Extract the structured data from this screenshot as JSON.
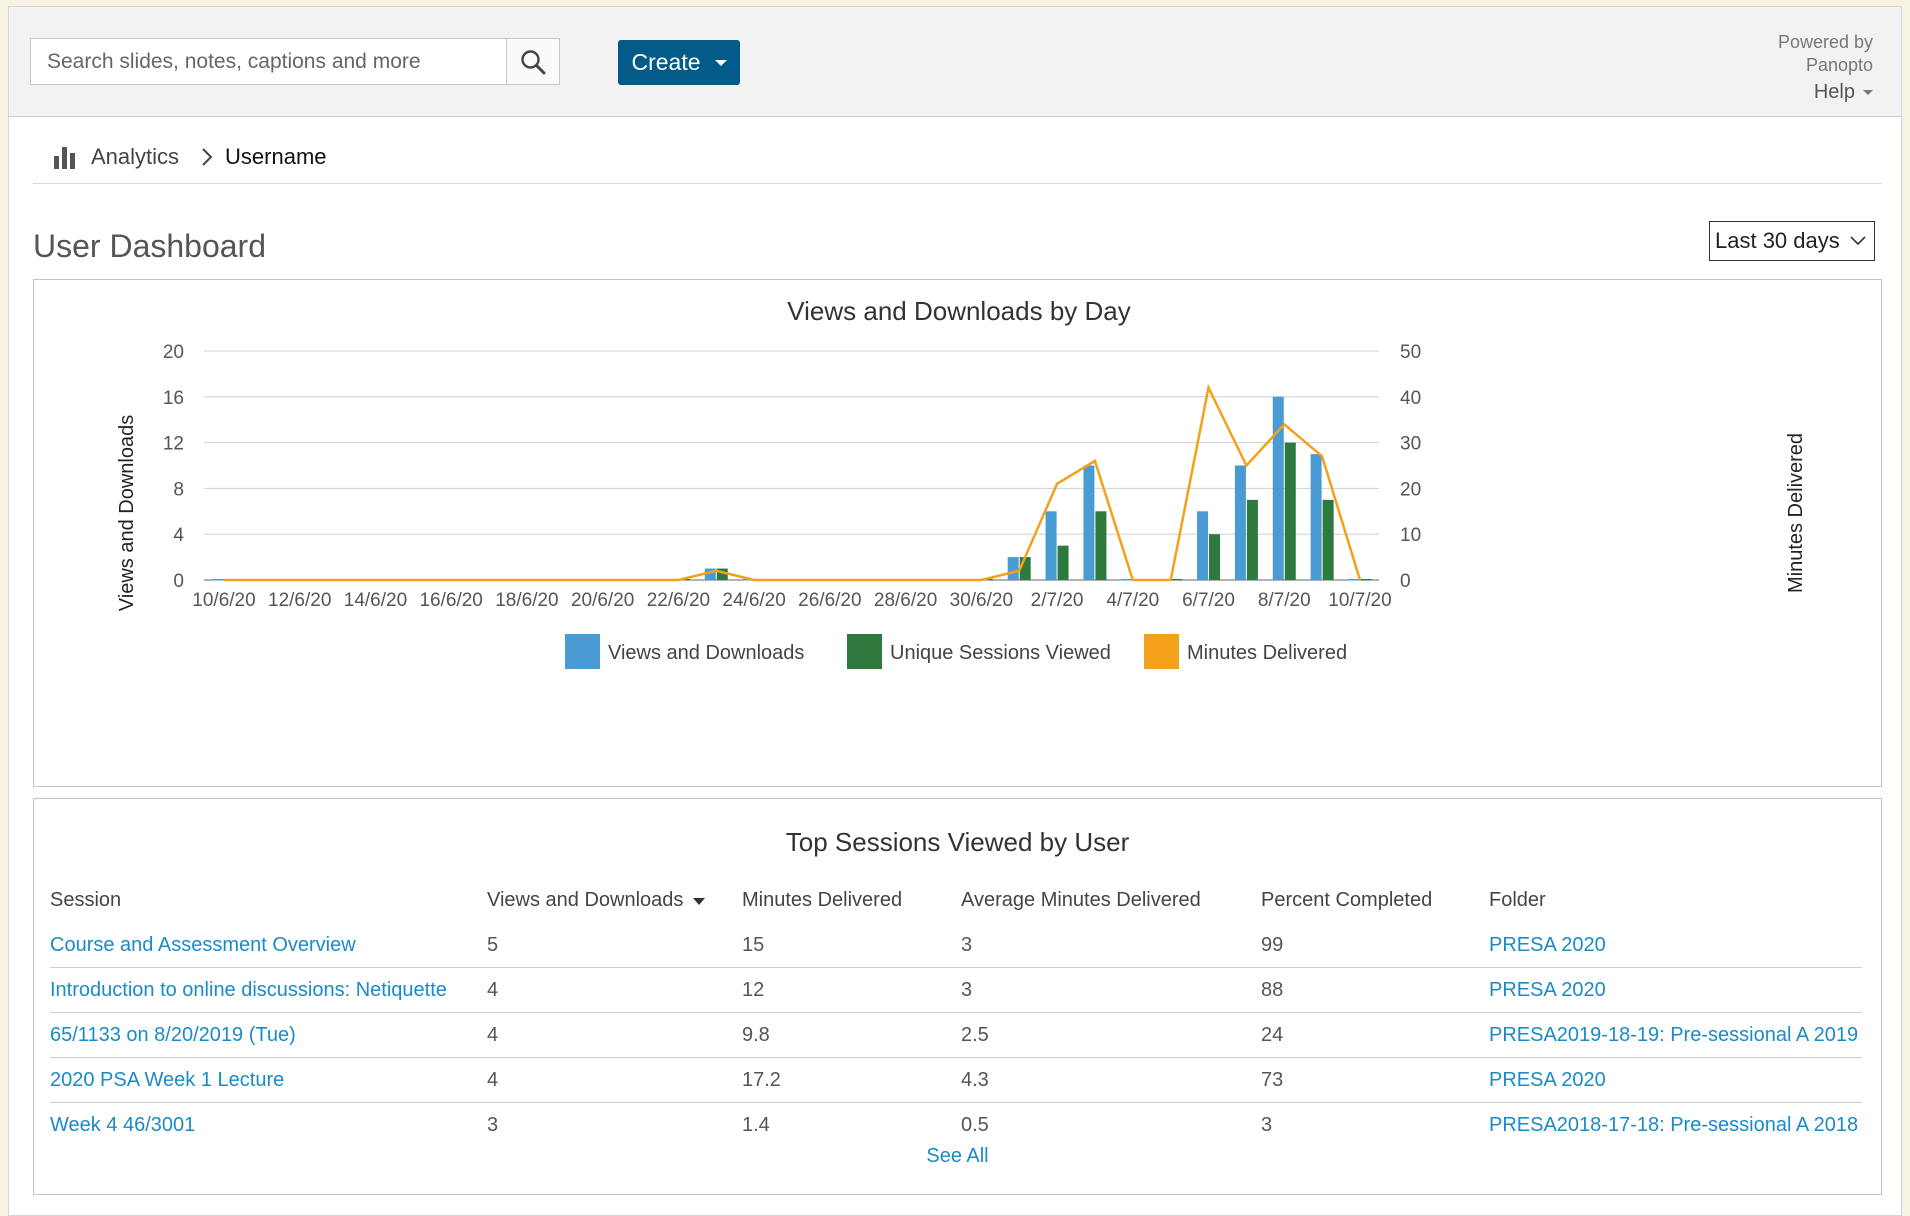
{
  "header": {
    "search_placeholder": "Search slides, notes, captions and more",
    "create_label": "Create",
    "powered_line1": "Powered by",
    "powered_line2": "Panopto",
    "help_label": "Help"
  },
  "breadcrumb": {
    "analytics": "Analytics",
    "user": "Username"
  },
  "page": {
    "title": "User Dashboard",
    "range": "Last 30 days"
  },
  "chart_data": {
    "type": "bar",
    "title": "Views and Downloads by Day",
    "ylabel": "Views and Downloads",
    "y2label": "Minutes Delivered",
    "ylim": [
      0,
      20
    ],
    "y2lim": [
      0,
      50
    ],
    "yticks": [
      0,
      4,
      8,
      12,
      16,
      20
    ],
    "y2ticks": [
      0,
      10,
      20,
      30,
      40,
      50
    ],
    "xtick_labels": [
      "10/6/20",
      "12/6/20",
      "14/6/20",
      "16/6/20",
      "18/6/20",
      "20/6/20",
      "22/6/20",
      "24/6/20",
      "26/6/20",
      "28/6/20",
      "30/6/20",
      "2/7/20",
      "4/7/20",
      "6/7/20",
      "8/7/20",
      "10/7/20"
    ],
    "categories": [
      "10/6/20",
      "11/6/20",
      "12/6/20",
      "13/6/20",
      "14/6/20",
      "15/6/20",
      "16/6/20",
      "17/6/20",
      "18/6/20",
      "19/6/20",
      "20/6/20",
      "21/6/20",
      "22/6/20",
      "23/6/20",
      "24/6/20",
      "25/6/20",
      "26/6/20",
      "27/6/20",
      "28/6/20",
      "29/6/20",
      "30/6/20",
      "1/7/20",
      "2/7/20",
      "3/7/20",
      "4/7/20",
      "5/7/20",
      "6/7/20",
      "7/7/20",
      "8/7/20",
      "9/7/20",
      "10/7/20"
    ],
    "series": [
      {
        "name": "Views and Downloads",
        "kind": "bar",
        "axis": "left",
        "color": "#4a9bd4",
        "values": [
          0,
          0,
          0,
          0,
          0,
          0,
          0,
          0,
          0,
          0,
          0,
          0,
          0,
          1,
          0,
          0,
          0,
          0,
          0,
          0,
          0,
          2,
          6,
          10,
          0,
          0,
          6,
          10,
          16,
          11,
          0
        ]
      },
      {
        "name": "Unique Sessions Viewed",
        "kind": "bar",
        "axis": "left",
        "color": "#2e7a3e",
        "values": [
          0,
          0,
          0,
          0,
          0,
          0,
          0,
          0,
          0,
          0,
          0,
          0,
          0,
          1,
          0,
          0,
          0,
          0,
          0,
          0,
          0,
          2,
          3,
          6,
          0,
          0,
          4,
          7,
          12,
          7,
          0
        ]
      },
      {
        "name": "Minutes Delivered",
        "kind": "line",
        "axis": "right",
        "color": "#f5a01a",
        "values": [
          0,
          0,
          0,
          0,
          0,
          0,
          0,
          0,
          0,
          0,
          0,
          0,
          0,
          2,
          0,
          0,
          0,
          0,
          0,
          0,
          0,
          2,
          21,
          26,
          0,
          0,
          42,
          25,
          34,
          27,
          0
        ]
      }
    ],
    "legend_position": "bottom",
    "grid": true
  },
  "table": {
    "title": "Top Sessions Viewed by User",
    "columns": [
      "Session",
      "Views and Downloads",
      "Minutes Delivered",
      "Average Minutes Delivered",
      "Percent Completed",
      "Folder"
    ],
    "rows": [
      {
        "session": "Course and Assessment Overview",
        "views": "5",
        "minutes": "15",
        "avg": "3",
        "percent": "99",
        "folder": "PRESA 2020"
      },
      {
        "session": "Introduction to online discussions: Netiquette",
        "views": "4",
        "minutes": "12",
        "avg": "3",
        "percent": "88",
        "folder": "PRESA 2020"
      },
      {
        "session": "65/1133 on 8/20/2019 (Tue)",
        "views": "4",
        "minutes": "9.8",
        "avg": "2.5",
        "percent": "24",
        "folder": "PRESA2019-18-19: Pre-sessional A 2019"
      },
      {
        "session": "2020 PSA Week 1 Lecture",
        "views": "4",
        "minutes": "17.2",
        "avg": "4.3",
        "percent": "73",
        "folder": "PRESA 2020"
      },
      {
        "session": "Week 4 46/3001",
        "views": "3",
        "minutes": "1.4",
        "avg": "0.5",
        "percent": "3",
        "folder": "PRESA2018-17-18: Pre-sessional A 2018"
      }
    ],
    "see_all": "See All"
  }
}
